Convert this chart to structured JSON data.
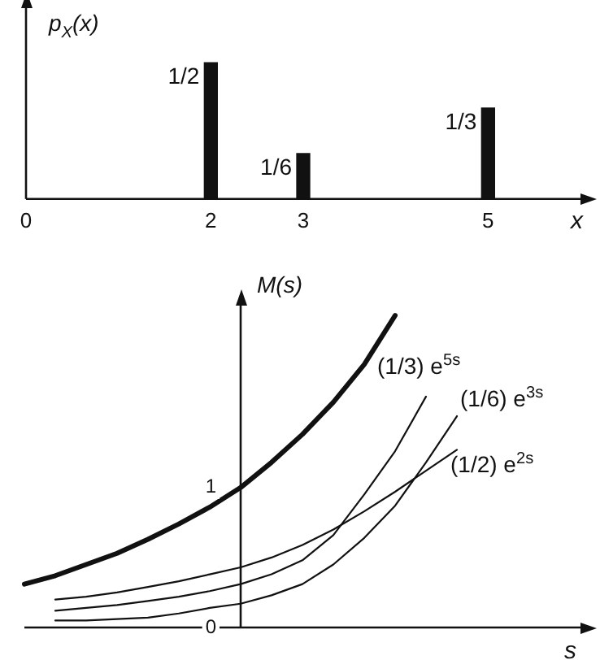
{
  "chart_data": [
    {
      "type": "bar",
      "ylabel": "p$_{X}$(x)",
      "xlabel": "x",
      "x": [
        2,
        3,
        5
      ],
      "values": [
        0.5,
        0.1667,
        0.3333
      ],
      "value_labels": [
        "1/2",
        "1/6",
        "1/3"
      ],
      "color": "#111111",
      "xlim": [
        0,
        6
      ],
      "xticks": [
        0,
        2,
        3,
        5
      ],
      "tick_labels": "x",
      "grid": false,
      "legend": false
    },
    {
      "type": "line",
      "ylabel": "M(s)",
      "xlabel": "s",
      "categories": [
        null,
        null,
        null,
        null,
        null,
        null,
        null,
        null,
        null,
        null,
        null,
        null,
        null,
        null,
        null,
        null,
        null,
        null,
        null
      ],
      "ylim": [
        0,
        2.3
      ],
      "yticks": [
        {
          "value": 0,
          "label": "0"
        },
        1
      ],
      "tick_labels": "y",
      "grid": false,
      "legend": false,
      "marker": "none",
      "series": [
        {
          "color": "#111111",
          "values": [
            0.31,
            0.37,
            0.45,
            0.53,
            0.63,
            0.74,
            0.86,
            1.0,
            1.18,
            1.38,
            1.61,
            1.88,
            2.23,
            null,
            null,
            null,
            null,
            null,
            null
          ]
        },
        {
          "name": "(1/3) e$^{5s}$",
          "color": "#111111",
          "values": [
            null,
            0.12,
            0.14,
            0.16,
            0.19,
            0.22,
            0.26,
            0.31,
            0.38,
            0.48,
            0.66,
            0.95,
            1.26,
            1.65,
            null,
            null,
            null,
            null,
            null
          ]
        },
        {
          "name": "(1/6) e$^{3s}$",
          "color": "#111111",
          "values": [
            null,
            0.05,
            0.05,
            0.06,
            0.07,
            0.1,
            0.14,
            0.17,
            0.23,
            0.31,
            0.45,
            0.64,
            0.87,
            1.18,
            1.51,
            null,
            null,
            null,
            null
          ]
        },
        {
          "name": "(1/2) e$^{2s}$",
          "color": "#111111",
          "values": [
            null,
            0.2,
            0.22,
            0.25,
            0.29,
            0.33,
            0.38,
            0.43,
            0.5,
            0.59,
            0.7,
            0.83,
            0.97,
            1.12,
            1.27,
            null,
            null,
            null,
            null
          ]
        }
      ]
    }
  ]
}
